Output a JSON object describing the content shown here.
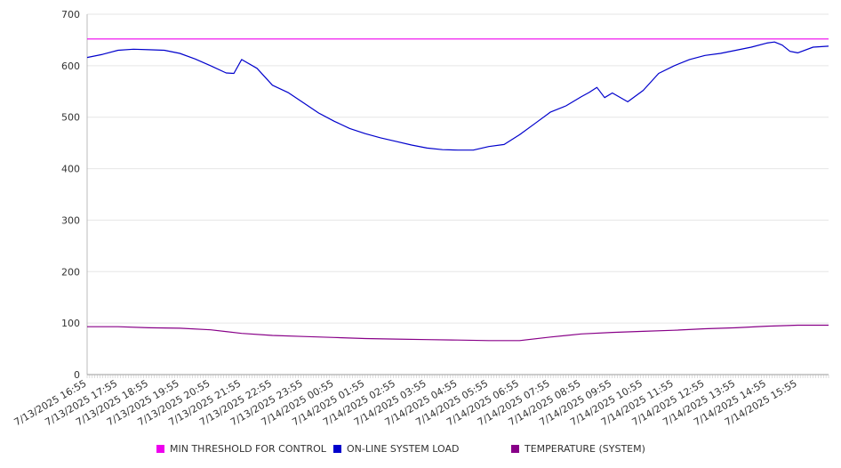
{
  "chart_data": {
    "type": "line",
    "title": "",
    "xlabel": "",
    "ylabel": "",
    "ylim": [
      0,
      700
    ],
    "yticks": [
      0,
      100,
      200,
      300,
      400,
      500,
      600,
      700
    ],
    "x_tick_labels": [
      "7/13/2025 16:55",
      "7/13/2025 17:55",
      "7/13/2025 18:55",
      "7/13/2025 19:55",
      "7/13/2025 20:55",
      "7/13/2025 21:55",
      "7/13/2025 22:55",
      "7/13/2025 23:55",
      "7/14/2025 00:55",
      "7/14/2025 01:55",
      "7/14/2025 02:55",
      "7/14/2025 03:55",
      "7/14/2025 04:55",
      "7/14/2025 05:55",
      "7/14/2025 06:55",
      "7/14/2025 07:55",
      "7/14/2025 08:55",
      "7/14/2025 09:55",
      "7/14/2025 10:55",
      "7/14/2025 11:55",
      "7/14/2025 12:55",
      "7/14/2025 13:55",
      "7/14/2025 14:55",
      "7/14/2025 15:55"
    ],
    "x_start": "7/13/2025 16:55",
    "x_end": "7/14/2025 16:55",
    "grid": true,
    "legend_position": "bottom",
    "series": [
      {
        "name": "MIN THRESHOLD FOR CONTROL",
        "color": "#ee00ee",
        "x": [
          "7/13/2025 16:55",
          "7/14/2025 16:55"
        ],
        "values": [
          652,
          652
        ]
      },
      {
        "name": "ON-LINE SYSTEM LOAD",
        "color": "#0000cc",
        "x": [
          "7/13/2025 16:55",
          "7/13/2025 17:25",
          "7/13/2025 17:55",
          "7/13/2025 18:25",
          "7/13/2025 18:55",
          "7/13/2025 19:25",
          "7/13/2025 19:55",
          "7/13/2025 20:25",
          "7/13/2025 20:55",
          "7/13/2025 21:25",
          "7/13/2025 21:40",
          "7/13/2025 21:55",
          "7/13/2025 22:25",
          "7/13/2025 22:55",
          "7/13/2025 23:25",
          "7/13/2025 23:55",
          "7/14/2025 00:25",
          "7/14/2025 00:55",
          "7/14/2025 01:25",
          "7/14/2025 01:55",
          "7/14/2025 02:25",
          "7/14/2025 02:55",
          "7/14/2025 03:25",
          "7/14/2025 03:55",
          "7/14/2025 04:25",
          "7/14/2025 04:55",
          "7/14/2025 05:25",
          "7/14/2025 05:55",
          "7/14/2025 06:25",
          "7/14/2025 06:55",
          "7/14/2025 07:25",
          "7/14/2025 07:55",
          "7/14/2025 08:25",
          "7/14/2025 08:55",
          "7/14/2025 09:10",
          "7/14/2025 09:25",
          "7/14/2025 09:40",
          "7/14/2025 09:55",
          "7/14/2025 10:25",
          "7/14/2025 10:55",
          "7/14/2025 11:25",
          "7/14/2025 11:55",
          "7/14/2025 12:25",
          "7/14/2025 12:55",
          "7/14/2025 13:25",
          "7/14/2025 13:55",
          "7/14/2025 14:25",
          "7/14/2025 14:55",
          "7/14/2025 15:10",
          "7/14/2025 15:25",
          "7/14/2025 15:40",
          "7/14/2025 15:55",
          "7/14/2025 16:25",
          "7/14/2025 16:55"
        ],
        "values": [
          616,
          622,
          630,
          632,
          631,
          630,
          624,
          613,
          600,
          586,
          585,
          612,
          595,
          562,
          548,
          528,
          508,
          492,
          478,
          468,
          460,
          453,
          446,
          440,
          437,
          436,
          436,
          443,
          447,
          466,
          488,
          510,
          522,
          540,
          548,
          558,
          538,
          547,
          530,
          552,
          585,
          600,
          612,
          620,
          624,
          630,
          636,
          644,
          646,
          640,
          628,
          625,
          636,
          638
        ]
      },
      {
        "name": "TEMPERATURE (SYSTEM)",
        "color": "#880088",
        "x": [
          "7/13/2025 16:55",
          "7/13/2025 17:55",
          "7/13/2025 18:55",
          "7/13/2025 19:55",
          "7/13/2025 20:55",
          "7/13/2025 21:55",
          "7/13/2025 22:55",
          "7/13/2025 23:55",
          "7/14/2025 00:55",
          "7/14/2025 01:55",
          "7/14/2025 02:55",
          "7/14/2025 03:55",
          "7/14/2025 04:55",
          "7/14/2025 05:55",
          "7/14/2025 06:55",
          "7/14/2025 07:55",
          "7/14/2025 08:55",
          "7/14/2025 09:55",
          "7/14/2025 10:55",
          "7/14/2025 11:55",
          "7/14/2025 12:55",
          "7/14/2025 13:55",
          "7/14/2025 14:55",
          "7/14/2025 15:55",
          "7/14/2025 16:55"
        ],
        "values": [
          93,
          93,
          91,
          90,
          87,
          80,
          76,
          74,
          72,
          70,
          69,
          68,
          67,
          66,
          66,
          73,
          79,
          82,
          84,
          86,
          89,
          91,
          94,
          96,
          96
        ]
      }
    ]
  }
}
